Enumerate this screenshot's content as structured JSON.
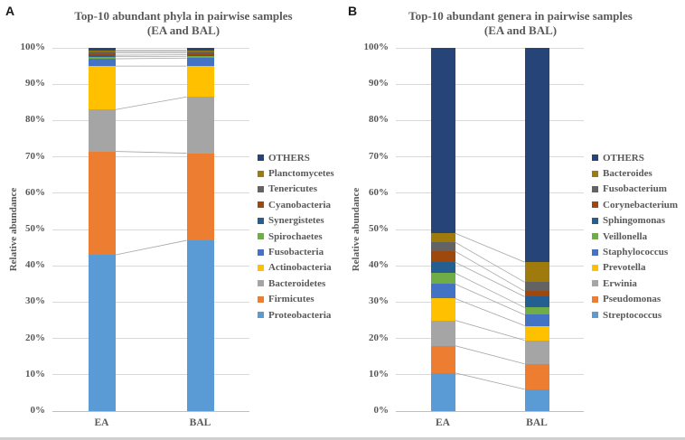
{
  "panels": [
    {
      "letter": "A"
    },
    {
      "letter": "B"
    }
  ],
  "chart_data": [
    {
      "type": "bar",
      "stacked": true,
      "units": "percent",
      "title": "Top-10 abundant phyla in pairwise samples (EA and BAL)",
      "title_lines": [
        "Top-10 abundant phyla in pairwise samples",
        "(EA and BAL)"
      ],
      "ylabel": "Relative abundance",
      "categories": [
        "EA",
        "BAL"
      ],
      "ylim": [
        0,
        100
      ],
      "ytick_labels": [
        "0%",
        "10%",
        "20%",
        "30%",
        "40%",
        "50%",
        "60%",
        "70%",
        "80%",
        "90%",
        "100%"
      ],
      "grid": true,
      "legend_position": "right",
      "legend_note": "legend drawn top-to-bottom is the reverse of stacking order",
      "series": [
        {
          "name": "Proteobacteria",
          "color": "#5B9BD5",
          "values": [
            43.0,
            47.0
          ]
        },
        {
          "name": "Firmicutes",
          "color": "#ED7D31",
          "values": [
            28.5,
            24.0
          ]
        },
        {
          "name": "Bacteroidetes",
          "color": "#A5A5A5",
          "values": [
            11.5,
            15.5
          ]
        },
        {
          "name": "Actinobacteria",
          "color": "#FFC000",
          "values": [
            12.0,
            8.5
          ]
        },
        {
          "name": "Fusobacteria",
          "color": "#4472C4",
          "values": [
            2.0,
            2.2
          ]
        },
        {
          "name": "Spirochaetes",
          "color": "#70AD47",
          "values": [
            0.6,
            0.5
          ]
        },
        {
          "name": "Synergistetes",
          "color": "#255E91",
          "values": [
            0.4,
            0.4
          ]
        },
        {
          "name": "Cyanobacteria",
          "color": "#9E480E",
          "values": [
            0.6,
            0.5
          ]
        },
        {
          "name": "Tenericutes",
          "color": "#636363",
          "values": [
            0.4,
            0.4
          ]
        },
        {
          "name": "Planctomycetes",
          "color": "#9E7B0C",
          "values": [
            0.3,
            0.3
          ]
        },
        {
          "name": "OTHERS",
          "color": "#264478",
          "values": [
            0.7,
            0.7
          ]
        }
      ]
    },
    {
      "type": "bar",
      "stacked": true,
      "units": "percent",
      "title": "Top-10 abundant genera in pairwise samples (EA and BAL)",
      "title_lines": [
        "Top-10 abundant genera in pairwise samples",
        "(EA and BAL)"
      ],
      "ylabel": "Relative abundance",
      "categories": [
        "EA",
        "BAL"
      ],
      "ylim": [
        0,
        100
      ],
      "ytick_labels": [
        "0%",
        "10%",
        "20%",
        "30%",
        "40%",
        "50%",
        "60%",
        "70%",
        "80%",
        "90%",
        "100%"
      ],
      "grid": true,
      "legend_position": "right",
      "legend_note": "legend drawn top-to-bottom is the reverse of stacking order",
      "series": [
        {
          "name": "Streptococcus",
          "color": "#5B9BD5",
          "values": [
            10.5,
            6.0
          ]
        },
        {
          "name": "Pseudomonas",
          "color": "#ED7D31",
          "values": [
            7.5,
            7.0
          ]
        },
        {
          "name": "Erwinia",
          "color": "#A5A5A5",
          "values": [
            7.0,
            6.5
          ]
        },
        {
          "name": "Prevotella",
          "color": "#FFC000",
          "values": [
            6.0,
            4.0
          ]
        },
        {
          "name": "Staphylococcus",
          "color": "#4472C4",
          "values": [
            4.0,
            3.0
          ]
        },
        {
          "name": "Veillonella",
          "color": "#70AD47",
          "values": [
            3.0,
            2.0
          ]
        },
        {
          "name": "Sphingomonas",
          "color": "#255E91",
          "values": [
            3.0,
            3.0
          ]
        },
        {
          "name": "Corynebacterium",
          "color": "#9E480E",
          "values": [
            3.0,
            1.5
          ]
        },
        {
          "name": "Fusobacterium",
          "color": "#636363",
          "values": [
            2.5,
            2.5
          ]
        },
        {
          "name": "Bacteroides",
          "color": "#9E7B0C",
          "values": [
            2.5,
            5.5
          ]
        },
        {
          "name": "OTHERS",
          "color": "#264478",
          "values": [
            51.0,
            59.0
          ]
        }
      ]
    }
  ],
  "style_colors": {
    "title_text": "#595959",
    "gridline": "#d9d9d9",
    "axis_line": "#bfbfbf",
    "connector_line": "#a6a6a6"
  }
}
